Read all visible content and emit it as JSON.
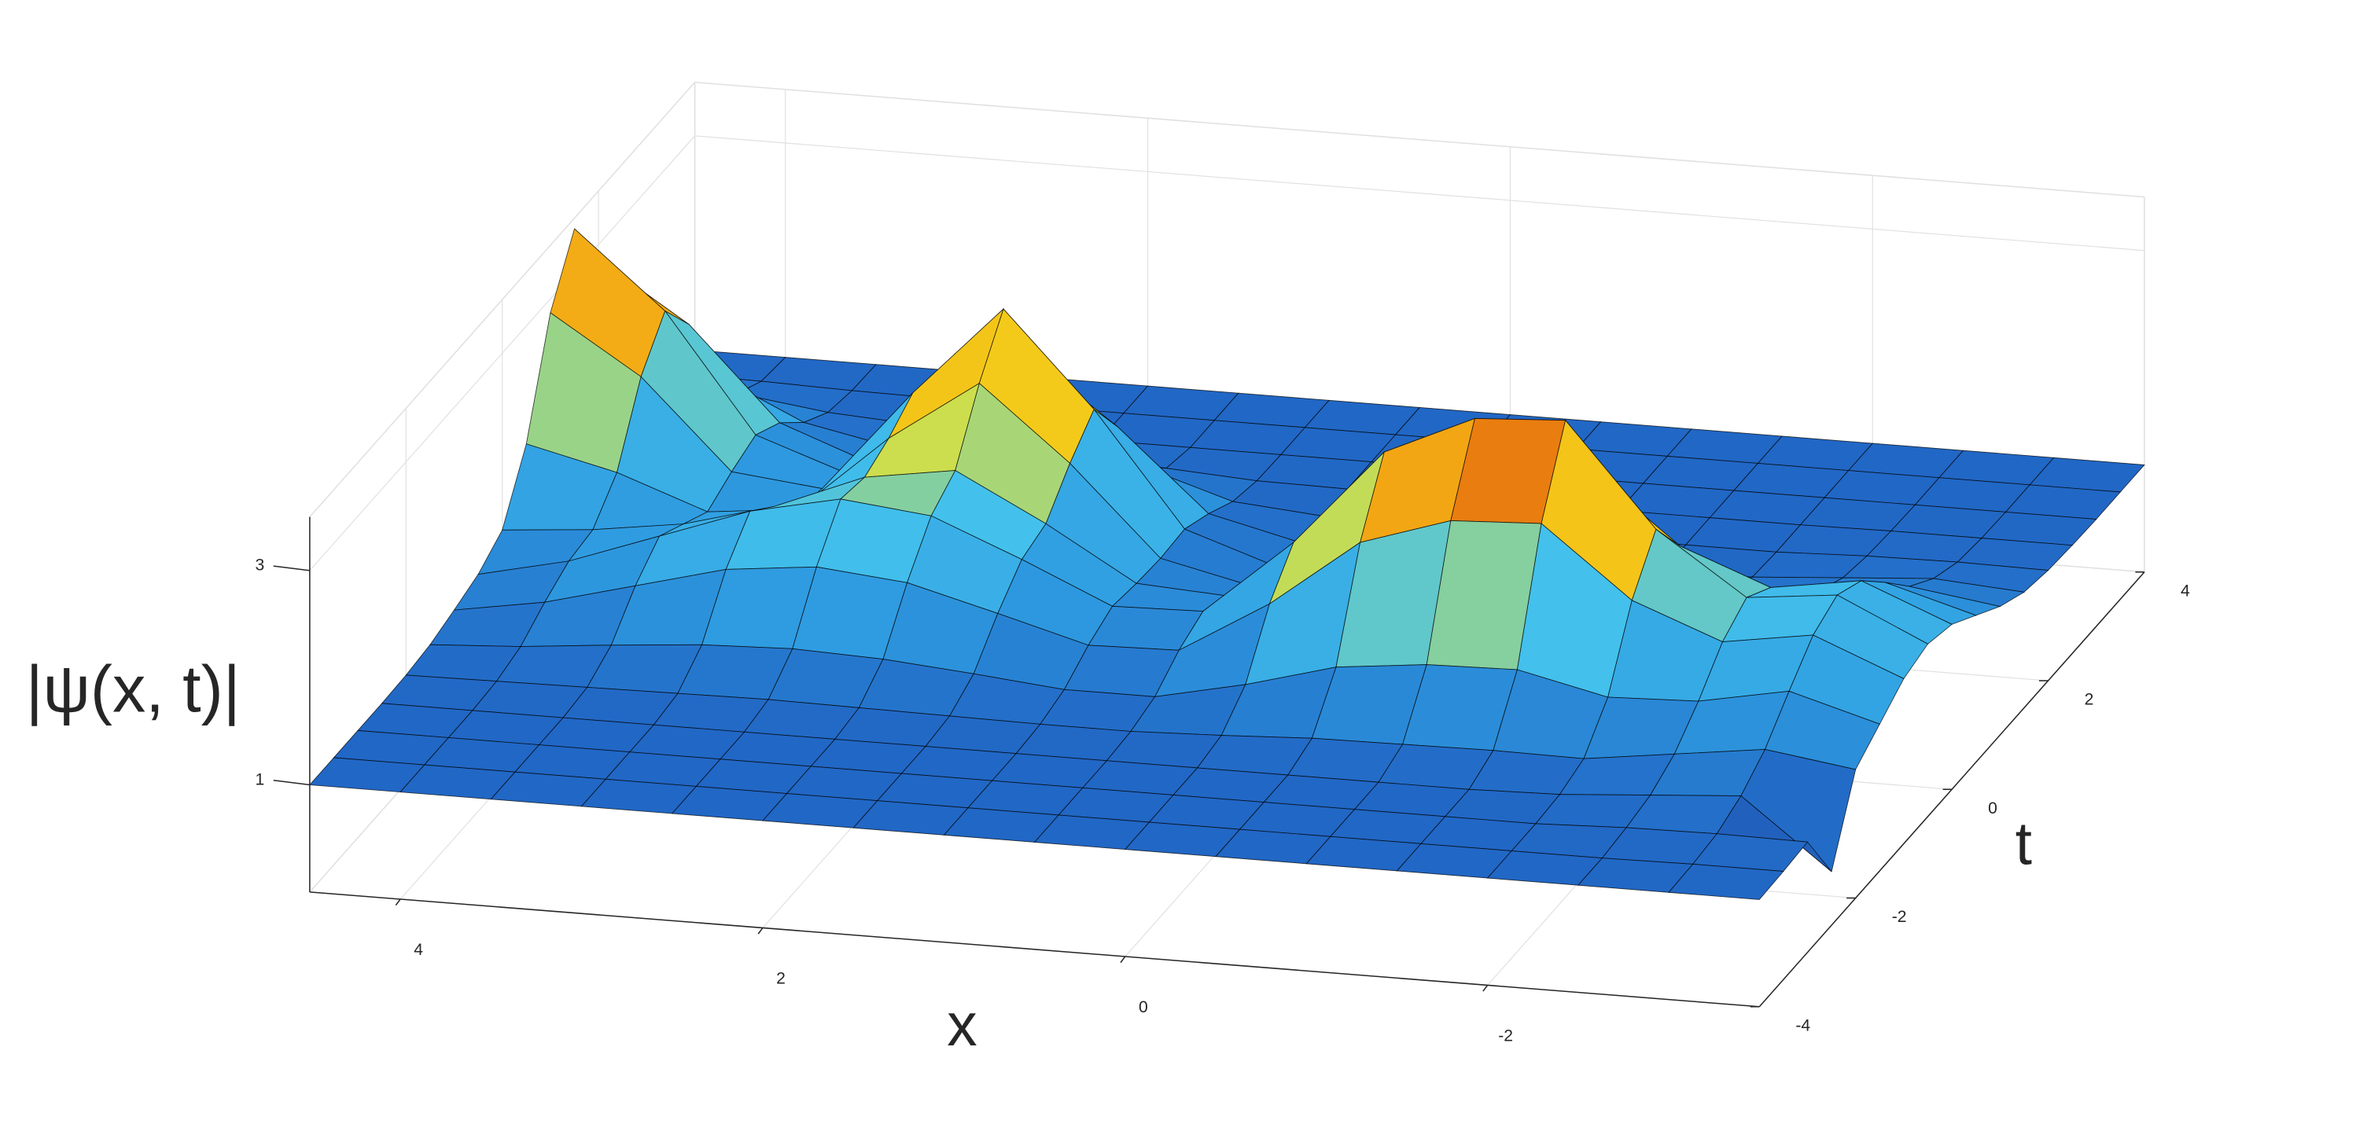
{
  "chart_data": {
    "type": "surface",
    "xlabel": "x",
    "ylabel": "t",
    "zlabel": "|ψ(x, t)|",
    "x": [
      -3.5,
      -3,
      -2.5,
      -2,
      -1.5,
      -1,
      -0.5,
      0,
      0.5,
      1,
      1.5,
      2,
      2.5,
      3,
      3.5,
      4,
      4.5
    ],
    "y": [
      -4,
      -3.5,
      -3,
      -2.5,
      -2,
      -1.5,
      -1,
      -0.5,
      0,
      0.5,
      1,
      1.5,
      2,
      2.5,
      3,
      3.5,
      4
    ],
    "z": [
      [
        1,
        1,
        1,
        1,
        1,
        1,
        1,
        1,
        1,
        1,
        1,
        1,
        1,
        1,
        1,
        1,
        1
      ],
      [
        1.01,
        1.01,
        1,
        1,
        1,
        1,
        1,
        1,
        1,
        1,
        1,
        1,
        1,
        1,
        1,
        1,
        1
      ],
      [
        1.03,
        1.04,
        1.03,
        1,
        1,
        1,
        1,
        1,
        1,
        1,
        1,
        1,
        1,
        1,
        1,
        1,
        1
      ],
      [
        0.5,
        1.14,
        1.08,
        1.02,
        1,
        1,
        1,
        1,
        1,
        1,
        1,
        1,
        1,
        1,
        1,
        1,
        1
      ],
      [
        1.2,
        1.32,
        1.21,
        1.1,
        1.11,
        1.1,
        1.09,
        1.05,
        1.02,
        1.02,
        1.03,
        1.04,
        1.05,
        1.04,
        1.03,
        1.02,
        1.01
      ],
      [
        1.37,
        1.61,
        1.45,
        1.42,
        1.61,
        1.59,
        1.5,
        1.27,
        1.09,
        1.09,
        1.17,
        1.24,
        1.27,
        1.24,
        1.17,
        1.09,
        1.04
      ],
      [
        1.54,
        1.88,
        1.75,
        2.07,
        2.72,
        2.68,
        2.41,
        1.77,
        1.27,
        1.25,
        1.48,
        1.7,
        1.78,
        1.69,
        1.47,
        1.25,
        1.11
      ],
      [
        1.61,
        2.0,
        1.91,
        2.48,
        3.43,
        3.38,
        3.0,
        2.09,
        1.38,
        1.36,
        1.73,
        2.07,
        2.16,
        1.98,
        1.68,
        1.38,
        1.19
      ],
      [
        1.54,
        1.88,
        1.75,
        2.07,
        2.72,
        2.68,
        2.41,
        1.77,
        1.27,
        1.32,
        1.81,
        2.24,
        2.11,
        1.77,
        1.54,
        1.42,
        1.35
      ],
      [
        1.37,
        1.61,
        1.45,
        1.42,
        1.61,
        1.59,
        1.5,
        1.27,
        1.11,
        1.3,
        2.12,
        2.8,
        2.22,
        1.49,
        1.4,
        1.7,
        1.9
      ],
      [
        1.2,
        1.32,
        1.21,
        1.1,
        1.11,
        1.1,
        1.09,
        1.05,
        1.04,
        1.32,
        2.37,
        3.24,
        2.39,
        1.43,
        1.52,
        2.34,
        2.87
      ],
      [
        1.08,
        1.14,
        1.08,
        1.02,
        1,
        1,
        1,
        1,
        1.01,
        1.21,
        1.95,
        2.56,
        1.95,
        1.32,
        1.61,
        2.7,
        3.4
      ],
      [
        1.03,
        1.04,
        1.03,
        1,
        1,
        1,
        1,
        1,
        1,
        1.07,
        1.33,
        1.55,
        1.33,
        1.16,
        1.47,
        2.32,
        2.86
      ],
      [
        1.01,
        1.01,
        1.01,
        1,
        1,
        1,
        1,
        1,
        1,
        1.01,
        1.06,
        1.1,
        1.06,
        1.05,
        1.22,
        1.61,
        1.86
      ],
      [
        1,
        1,
        1,
        1,
        1,
        1,
        1,
        1,
        1,
        1,
        1,
        1,
        1,
        1.01,
        1.06,
        1.17,
        1.24
      ],
      [
        1,
        1,
        1,
        1,
        1,
        1,
        1,
        1,
        1,
        1,
        1,
        1,
        1,
        1,
        1.01,
        1.03,
        1.04
      ],
      [
        1,
        1,
        1,
        1,
        1,
        1,
        1,
        1,
        1,
        1,
        1,
        1,
        1,
        1,
        1,
        1,
        1
      ]
    ],
    "xlim": [
      -3.5,
      4.5
    ],
    "ylim": [
      -4,
      4
    ],
    "zlim": [
      0,
      3.5
    ],
    "xticks": [
      -2,
      0,
      2,
      4
    ],
    "yticks": [
      -4,
      -2,
      0,
      2,
      4
    ],
    "zticks": [
      1,
      3
    ],
    "x_reversed": true,
    "grid": true,
    "colormap": [
      "#1e3c8c",
      "#2166c4",
      "#2e9ae0",
      "#43c1ec",
      "#f4e61e",
      "#f39a12",
      "#c81a0a"
    ],
    "edge_color": "#000000"
  }
}
